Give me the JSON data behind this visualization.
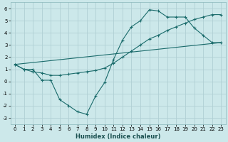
{
  "xlabel": "Humidex (Indice chaleur)",
  "background_color": "#cce8ea",
  "grid_color": "#b0d0d4",
  "line_color": "#1a6b6b",
  "xlim": [
    -0.5,
    23.5
  ],
  "ylim": [
    -3.5,
    6.5
  ],
  "yticks": [
    -3,
    -2,
    -1,
    0,
    1,
    2,
    3,
    4,
    5,
    6
  ],
  "xticks": [
    0,
    1,
    2,
    3,
    4,
    5,
    6,
    7,
    8,
    9,
    10,
    11,
    12,
    13,
    14,
    15,
    16,
    17,
    18,
    19,
    20,
    21,
    22,
    23
  ],
  "series1_x": [
    0,
    1,
    2,
    3,
    4,
    5,
    6,
    7,
    8,
    9,
    10,
    11,
    12,
    13,
    14,
    15,
    16,
    17,
    18,
    19,
    20,
    21,
    22,
    23
  ],
  "series1_y": [
    1.4,
    1.0,
    1.0,
    0.1,
    0.1,
    -1.5,
    -2.0,
    -2.5,
    -2.7,
    -1.2,
    -0.1,
    1.8,
    3.4,
    4.5,
    5.0,
    5.9,
    5.8,
    5.3,
    5.3,
    5.3,
    4.4,
    3.8,
    3.2,
    3.2
  ],
  "series2_x": [
    0,
    23
  ],
  "series2_y": [
    1.4,
    3.2
  ],
  "series3_x": [
    0,
    1,
    2,
    3,
    4,
    5,
    6,
    7,
    8,
    9,
    10,
    11,
    12,
    13,
    14,
    15,
    16,
    17,
    18,
    19,
    20,
    21,
    22,
    23
  ],
  "series3_y": [
    1.4,
    1.0,
    0.8,
    0.7,
    0.5,
    0.5,
    0.6,
    0.7,
    0.8,
    0.9,
    1.1,
    1.5,
    2.0,
    2.5,
    3.0,
    3.5,
    3.8,
    4.2,
    4.5,
    4.8,
    5.1,
    5.3,
    5.5,
    5.5
  ]
}
